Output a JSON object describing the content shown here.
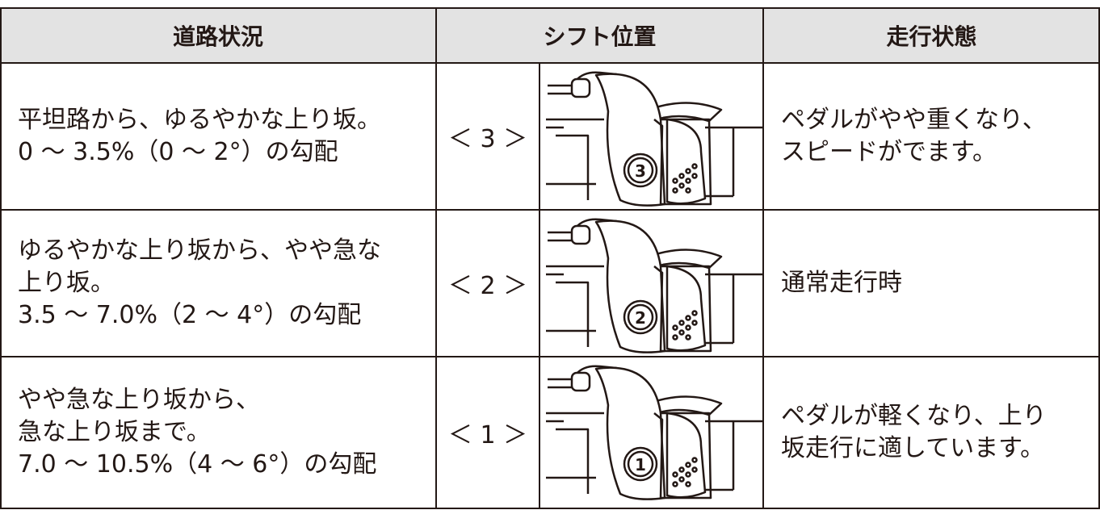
{
  "table": {
    "header": [
      "道路状況",
      "シフト位置",
      "走行状態"
    ],
    "rows": [
      {
        "condition": [
          "平坦路から、ゆるやかな上り坂。",
          "0 ～ 3.5%（0 ～ 2°）の勾配"
        ],
        "position": "＜ 3 ＞",
        "gear": "3",
        "state": [
          "ペダルがやや重くなり、",
          "スピードがでます。"
        ]
      },
      {
        "condition": [
          "ゆるやかな上り坂から、やや急な",
          "上り坂。",
          "3.5 ～ 7.0%（2 ～ 4°）の勾配"
        ],
        "position": "＜ 2 ＞",
        "gear": "2",
        "state": [
          "通常走行時"
        ]
      },
      {
        "condition": [
          "やや急な上り坂から、",
          "急な上り坂まで。",
          "7.0 ～ 10.5%（4 ～ 6°）の勾配"
        ],
        "position": "＜ 1 ＞",
        "gear": "1",
        "state": [
          "ペダルが軽くなり、上り",
          "坂走行に適しています。"
        ]
      }
    ]
  }
}
